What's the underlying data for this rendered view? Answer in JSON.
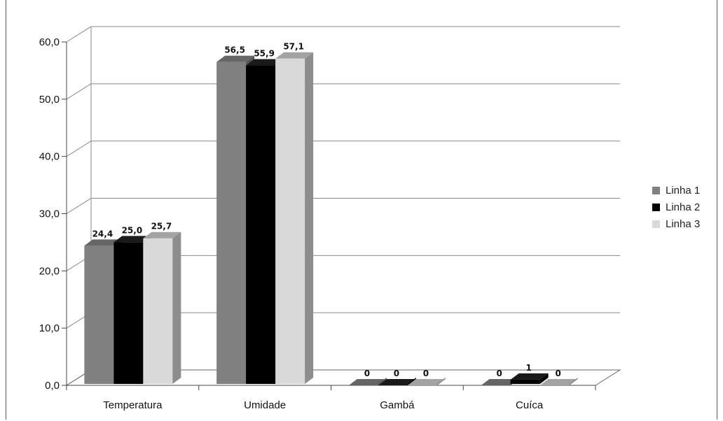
{
  "chart_data": {
    "type": "bar",
    "categories": [
      "Temperatura",
      "Umidade",
      "Gambá",
      "Cuíca"
    ],
    "series": [
      {
        "name": "Linha 1",
        "values": [
          24.4,
          56.5,
          0,
          0
        ],
        "labels": [
          "24,4",
          "56,5",
          "0",
          "0"
        ],
        "color": "#808080"
      },
      {
        "name": "Linha 2",
        "values": [
          25.0,
          55.9,
          0,
          1
        ],
        "labels": [
          "25,0",
          "55,9",
          "0",
          "1"
        ],
        "color": "#000000"
      },
      {
        "name": "Linha 3",
        "values": [
          25.7,
          57.1,
          0,
          0
        ],
        "labels": [
          "25,7",
          "57,1",
          "0",
          "0"
        ],
        "color": "#d9d9d9"
      }
    ],
    "yticks": [
      "0,0",
      "10,0",
      "20,0",
      "30,0",
      "40,0",
      "50,0",
      "60,0"
    ],
    "ylim": [
      0,
      60
    ],
    "grid": true,
    "legend_position": "right",
    "style": "3d-clustered-column"
  }
}
